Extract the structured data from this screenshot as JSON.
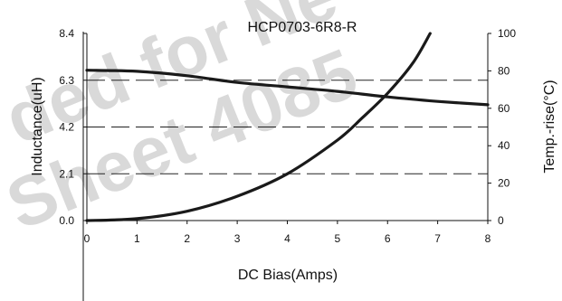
{
  "watermark": {
    "line1": "ded for Ne",
    "line2": "Sheet 4085",
    "color": "#d6d6d6"
  },
  "chart_data": {
    "type": "line",
    "title": "HCP0703-6R8-R",
    "xlabel": "DC Bias(Amps)",
    "ylabel_left": "Inductance(uH)",
    "ylabel_right": "Temp.-rise(°C)",
    "xlim": [
      0,
      8
    ],
    "ylim_left": [
      0,
      8.4
    ],
    "ylim_right": [
      0,
      100
    ],
    "x_ticks": [
      "0",
      "1",
      "2",
      "3",
      "4",
      "5",
      "6",
      "7",
      "8"
    ],
    "y_left_ticks": [
      "0.0",
      "2.1",
      "4.2",
      "6.3",
      "8.4"
    ],
    "y_right_ticks": [
      "0",
      "20",
      "40",
      "60",
      "80",
      "100"
    ],
    "grid": "horizontal dashed",
    "series": [
      {
        "name": "Inductance",
        "axis": "left",
        "color": "#1a1a1a",
        "x": [
          0,
          1,
          2,
          3,
          4,
          5,
          6,
          7,
          8
        ],
        "y": [
          6.75,
          6.7,
          6.5,
          6.2,
          6.0,
          5.8,
          5.55,
          5.35,
          5.2
        ]
      },
      {
        "name": "Temp.-rise",
        "axis": "right",
        "color": "#1a1a1a",
        "x": [
          0,
          1,
          2,
          3,
          4,
          5,
          5.5,
          6,
          6.5,
          6.85
        ],
        "y": [
          0,
          1,
          5,
          13,
          25,
          43,
          55,
          68,
          84,
          100
        ]
      }
    ]
  }
}
